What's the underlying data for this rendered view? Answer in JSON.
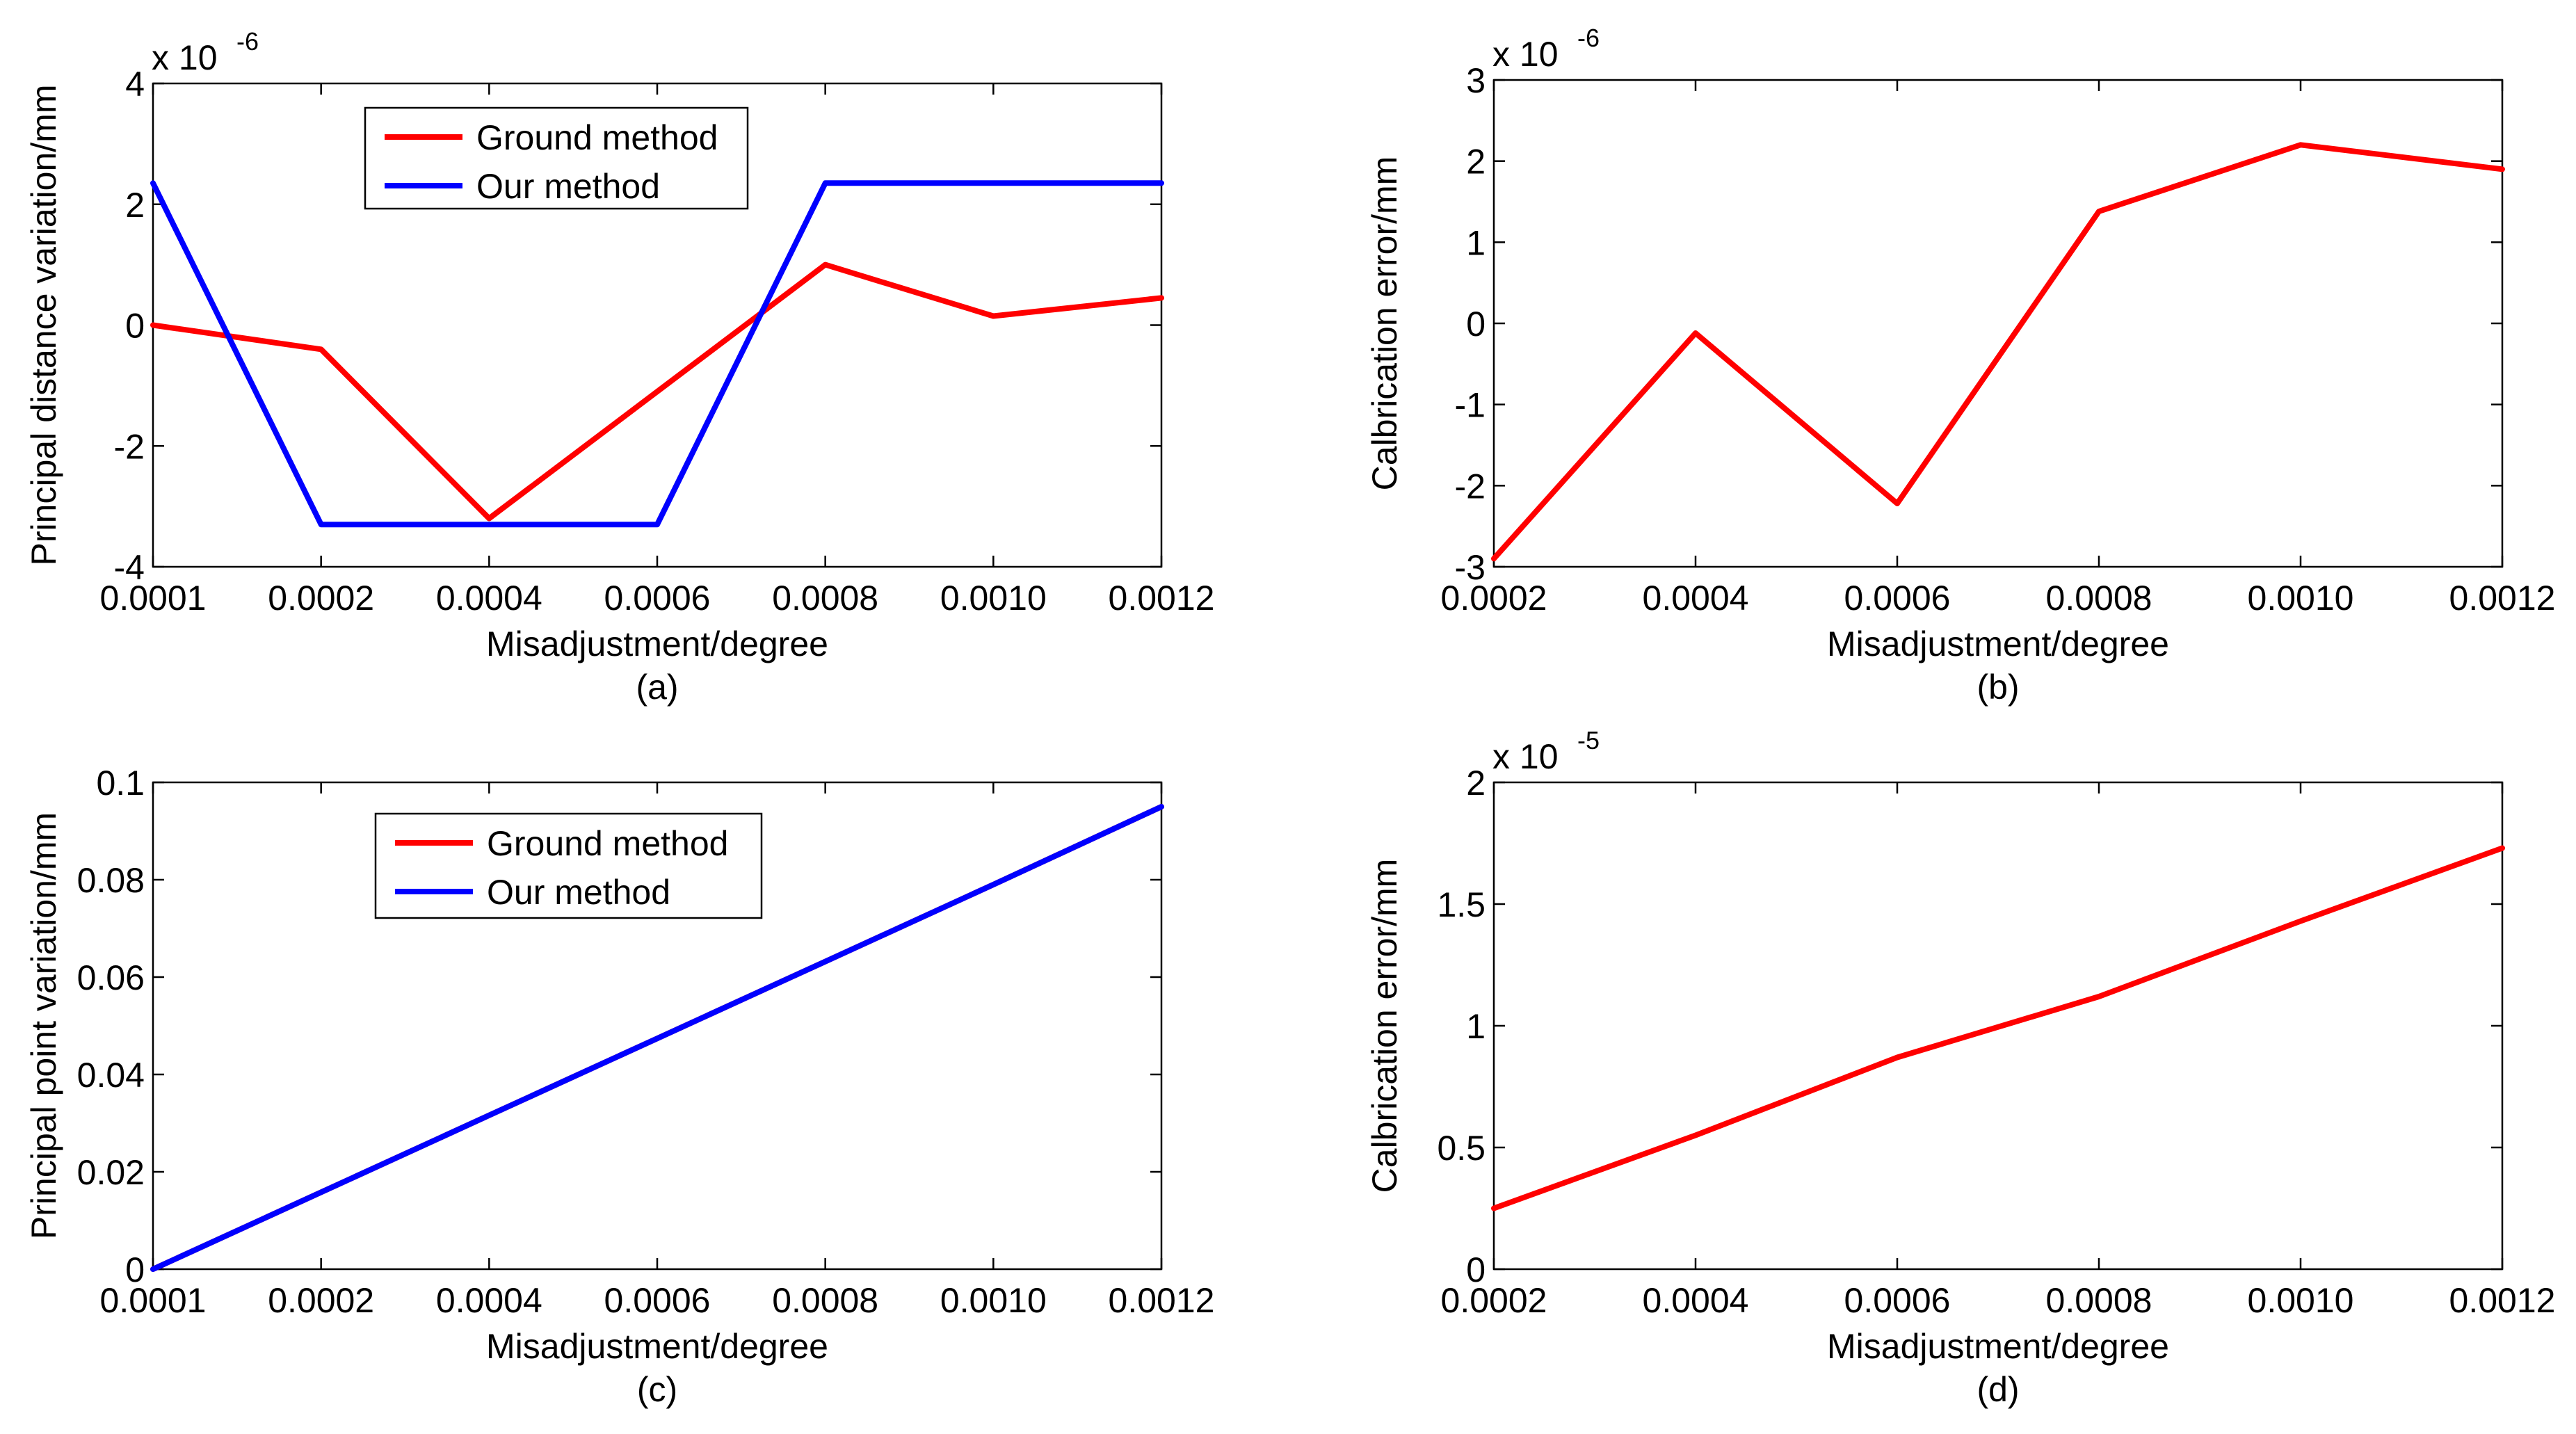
{
  "chart_data": [
    {
      "id": "a",
      "type": "line",
      "xlabel": "Misadjustment/degree",
      "ylabel": "Principal distance variation/mm",
      "caption": "(a)",
      "exponent_base": "x 10",
      "exponent_power": "-6",
      "categories": [
        "0.0001",
        "0.0002",
        "0.0004",
        "0.0006",
        "0.0008",
        "0.0010",
        "0.0012"
      ],
      "ylim": [
        -4,
        4
      ],
      "yticks": [
        "-4",
        "-2",
        "0",
        "2",
        "4"
      ],
      "ytick_values": [
        -4,
        -2,
        0,
        2,
        4
      ],
      "series": [
        {
          "name": "Ground method",
          "color": "#ff0000",
          "values": [
            0,
            -0.4,
            -3.2,
            -1.1,
            1.0,
            0.15,
            0.45
          ]
        },
        {
          "name": "Our method",
          "color": "#0000ff",
          "values": [
            2.35,
            -3.3,
            -3.3,
            -3.3,
            2.35,
            2.35,
            2.35
          ]
        }
      ],
      "legend": "top-center"
    },
    {
      "id": "b",
      "type": "line",
      "xlabel": "Misadjustment/degree",
      "ylabel": "Calbrication error/mm",
      "caption": "(b)",
      "exponent_base": "x 10",
      "exponent_power": "-6",
      "categories": [
        "0.0002",
        "0.0004",
        "0.0006",
        "0.0008",
        "0.0010",
        "0.0012"
      ],
      "ylim": [
        -3,
        3
      ],
      "yticks": [
        "-3",
        "-2",
        "-1",
        "0",
        "1",
        "2",
        "3"
      ],
      "ytick_values": [
        -3,
        -2,
        -1,
        0,
        1,
        2,
        3
      ],
      "series": [
        {
          "name": "Calbrication error",
          "color": "#ff0000",
          "values": [
            -2.9,
            -0.12,
            -2.22,
            1.38,
            2.2,
            1.9
          ]
        }
      ]
    },
    {
      "id": "c",
      "type": "line",
      "xlabel": "Misadjustment/degree",
      "ylabel": "Principal point variation/mm",
      "caption": "(c)",
      "categories": [
        "0.0001",
        "0.0002",
        "0.0004",
        "0.0006",
        "0.0008",
        "0.0010",
        "0.0012"
      ],
      "ylim": [
        0,
        0.1
      ],
      "yticks": [
        "0",
        "0.02",
        "0.04",
        "0.06",
        "0.08",
        "0.1"
      ],
      "ytick_values": [
        0,
        0.02,
        0.04,
        0.06,
        0.08,
        0.1
      ],
      "series": [
        {
          "name": "Ground method",
          "color": "#ff0000",
          "values": [
            0,
            0.0158,
            0.0316,
            0.0474,
            0.0632,
            0.079,
            0.095
          ]
        },
        {
          "name": "Our method",
          "color": "#0000ff",
          "values": [
            0,
            0.0158,
            0.0316,
            0.0474,
            0.0632,
            0.079,
            0.095
          ]
        }
      ],
      "legend": "top-center"
    },
    {
      "id": "d",
      "type": "line",
      "xlabel": "Misadjustment/degree",
      "ylabel": "Calbrication error/mm",
      "caption": "(d)",
      "exponent_base": "x 10",
      "exponent_power": "-5",
      "categories": [
        "0.0002",
        "0.0004",
        "0.0006",
        "0.0008",
        "0.0010",
        "0.0012"
      ],
      "ylim": [
        0,
        2
      ],
      "yticks": [
        "0",
        "0.5",
        "1",
        "1.5",
        "2"
      ],
      "ytick_values": [
        0,
        0.5,
        1,
        1.5,
        2
      ],
      "series": [
        {
          "name": "Calbrication error",
          "color": "#ff0000",
          "values": [
            0.25,
            0.55,
            0.87,
            1.12,
            1.43,
            1.73
          ]
        }
      ]
    }
  ]
}
